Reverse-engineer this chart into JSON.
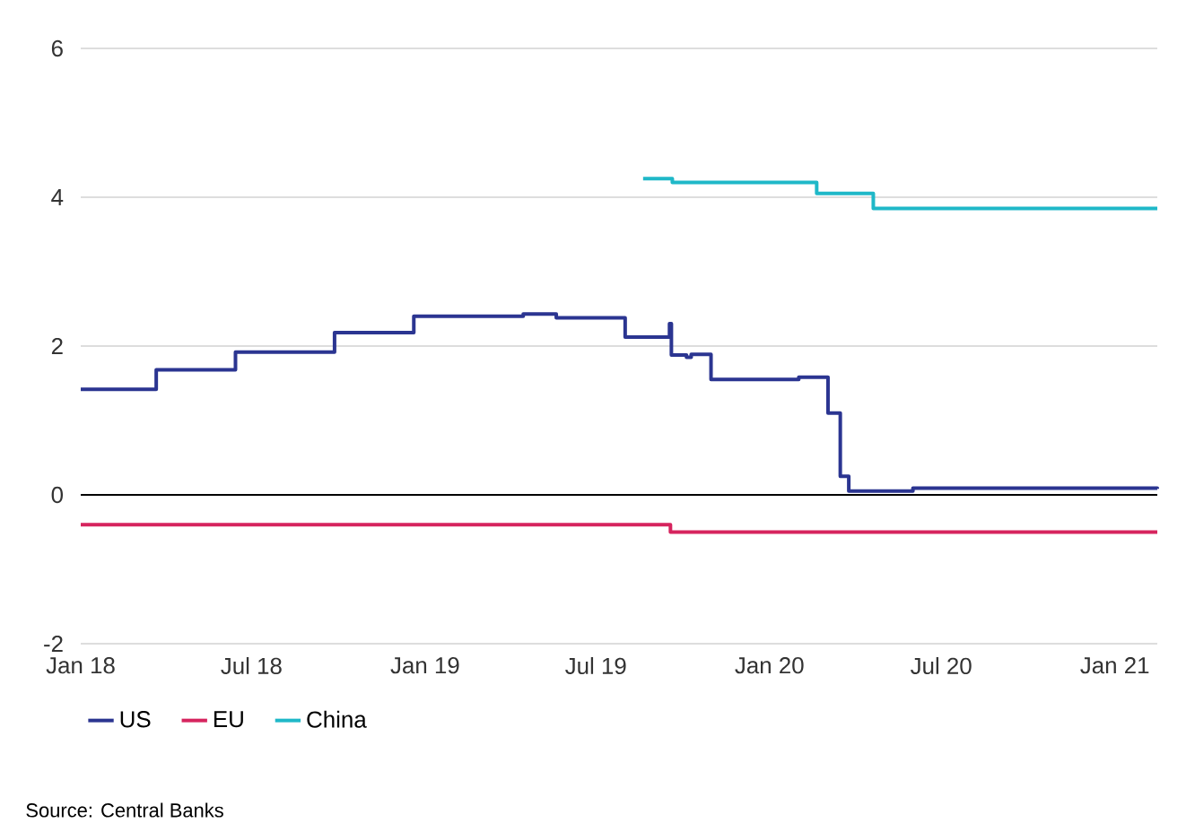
{
  "chart_data": {
    "type": "step",
    "xlim": [
      "2018-01-01",
      "2021-02-15"
    ],
    "xticks": [
      {
        "value": "2018-01-01",
        "label": "Jan 18"
      },
      {
        "value": "2018-07-01",
        "label": "Jul 18"
      },
      {
        "value": "2019-01-01",
        "label": "Jan 19"
      },
      {
        "value": "2019-07-01",
        "label": "Jul 19"
      },
      {
        "value": "2020-01-01",
        "label": "Jan 20"
      },
      {
        "value": "2020-07-01",
        "label": "Jul 20"
      },
      {
        "value": "2021-01-01",
        "label": "Jan 21"
      }
    ],
    "ylim": [
      -2,
      6
    ],
    "yticks": [
      -2,
      0,
      2,
      4,
      6
    ],
    "grid": "y",
    "legend": "bottom",
    "ref_lines": [
      {
        "axis": "y",
        "value": 0,
        "color": "#000000"
      }
    ],
    "annotations": [
      "Source: Central Banks"
    ],
    "series": [
      {
        "name": "US",
        "color": "#2b3591",
        "x": [
          "2018-01-01",
          "2018-03-22",
          "2018-06-14",
          "2018-09-27",
          "2018-12-20",
          "2019-04-15",
          "2019-05-20",
          "2019-08-01",
          "2019-09-17",
          "2019-09-19",
          "2019-10-05",
          "2019-10-10",
          "2019-10-31",
          "2020-02-01",
          "2020-03-03",
          "2020-03-16",
          "2020-03-25",
          "2020-06-01",
          "2021-02-15"
        ],
        "values": [
          1.42,
          1.68,
          1.92,
          2.18,
          2.4,
          2.43,
          2.38,
          2.12,
          2.3,
          1.88,
          1.85,
          1.89,
          1.55,
          1.58,
          1.1,
          0.25,
          0.05,
          0.09,
          0.08
        ]
      },
      {
        "name": "EU",
        "color": "#d6245e",
        "x": [
          "2018-01-01",
          "2019-09-18",
          "2021-02-15"
        ],
        "values": [
          -0.4,
          -0.5,
          -0.5
        ]
      },
      {
        "name": "China",
        "color": "#1fb8c8",
        "x": [
          "2019-08-20",
          "2019-09-20",
          "2020-02-20",
          "2020-04-20",
          "2021-02-15"
        ],
        "values": [
          4.25,
          4.2,
          4.05,
          3.85,
          3.85
        ]
      }
    ]
  }
}
